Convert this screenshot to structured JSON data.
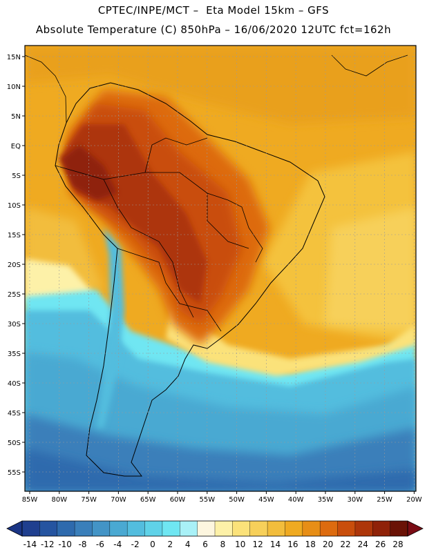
{
  "header": {
    "title_line1": "CPTEC/INPE/MCT –  Eta Model 15km – GFS",
    "title_line2": "Absolute Temperature (C) 850hPa – 16/06/2020 12UTC fct=162h"
  },
  "map": {
    "lon_labels": [
      "85W",
      "80W",
      "75W",
      "70W",
      "65W",
      "60W",
      "55W",
      "50W",
      "45W",
      "40W",
      "35W",
      "30W",
      "25W",
      "20W"
    ],
    "lat_labels": [
      "15N",
      "10N",
      "5N",
      "EQ",
      "5S",
      "10S",
      "15S",
      "20S",
      "25S",
      "30S",
      "35S",
      "40S",
      "45S",
      "50S",
      "55S"
    ],
    "field": "Absolute Temperature (C) at 850hPa"
  },
  "colorbar": {
    "labels": [
      "-14",
      "-12",
      "-10",
      "-8",
      "-6",
      "-4",
      "-2",
      "0",
      "2",
      "4",
      "6",
      "8",
      "10",
      "12",
      "14",
      "16",
      "18",
      "20",
      "22",
      "24",
      "26",
      "28"
    ],
    "colors": [
      "#1f3f8f",
      "#2554a0",
      "#2e6aad",
      "#3a7fba",
      "#4394c6",
      "#4aa9d2",
      "#53bdde",
      "#5fd2e8",
      "#6fe6f2",
      "#a9f1f7",
      "#fdf6df",
      "#fdf1a8",
      "#fbe27a",
      "#f7d05a",
      "#f2bd3c",
      "#efaa21",
      "#e78e16",
      "#dd6b0f",
      "#c94e0c",
      "#ad360a",
      "#8f2208",
      "#6a1206"
    ],
    "under_color": "#1a3585",
    "over_color": "#7a0c14"
  }
}
